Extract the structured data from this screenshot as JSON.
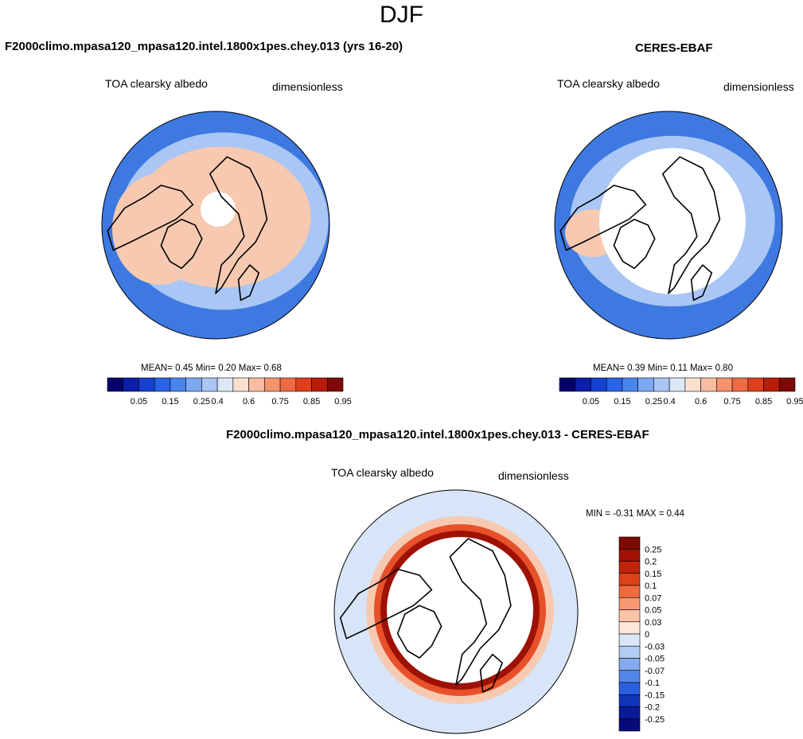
{
  "page_title": "DJF",
  "palette": {
    "ocean_blue": "#3d79e0",
    "light_blue": "#a9c6f5",
    "pale_blue": "#d8e5f8",
    "pale_red": "#f7c9b0",
    "red": "#e8502a",
    "dark_red": "#9e1205",
    "land_outline": "#000000"
  },
  "chart_data": [
    {
      "type": "heatmap",
      "panel": "model",
      "title": "F2000climo.mpasa120_mpasa120.intel.1800x1pes.chey.013 (yrs 16-20)",
      "variable": "TOA clearsky albedo",
      "units": "dimensionless",
      "projection": "polar stereographic (north)",
      "stats": {
        "mean_label": "MEAN=",
        "mean": "0.45",
        "min_label": "Min=",
        "min": "0.20",
        "max_label": "Max=",
        "max": "0.68"
      },
      "colorbar": {
        "orientation": "horizontal",
        "levels": [
          0.05,
          0.1,
          0.15,
          0.2,
          0.25,
          0.3,
          0.4,
          0.5,
          0.6,
          0.7,
          0.75,
          0.8,
          0.85,
          0.9,
          0.95
        ],
        "tick_labels": [
          "0.05",
          "0.15",
          "0.25",
          "0.4",
          "0.6",
          "0.75",
          "0.85",
          "0.95"
        ],
        "colors": [
          "#08006a",
          "#0c1fa8",
          "#1740d0",
          "#2a63e6",
          "#4a85ee",
          "#7aa8f3",
          "#a9c6f5",
          "#dbe8f8",
          "#fbe0d0",
          "#f7bda1",
          "#f4936e",
          "#ee6a45",
          "#de3f1d",
          "#b81c0c",
          "#7d0a04"
        ]
      }
    },
    {
      "type": "heatmap",
      "panel": "obs",
      "title": "CERES-EBAF",
      "variable": "TOA clearsky albedo",
      "units": "dimensionless",
      "projection": "polar stereographic (north)",
      "stats": {
        "mean_label": "MEAN=",
        "mean": "0.39",
        "min_label": "Min=",
        "min": "0.11",
        "max_label": "Max=",
        "max": "0.80"
      },
      "colorbar": {
        "orientation": "horizontal",
        "levels": [
          0.05,
          0.1,
          0.15,
          0.2,
          0.25,
          0.3,
          0.4,
          0.5,
          0.6,
          0.7,
          0.75,
          0.8,
          0.85,
          0.9,
          0.95
        ],
        "tick_labels": [
          "0.05",
          "0.15",
          "0.25",
          "0.4",
          "0.6",
          "0.75",
          "0.85",
          "0.95"
        ],
        "colors": [
          "#08006a",
          "#0c1fa8",
          "#1740d0",
          "#2a63e6",
          "#4a85ee",
          "#7aa8f3",
          "#a9c6f5",
          "#dbe8f8",
          "#fbe0d0",
          "#f7bda1",
          "#f4936e",
          "#ee6a45",
          "#de3f1d",
          "#b81c0c",
          "#7d0a04"
        ]
      }
    },
    {
      "type": "heatmap",
      "panel": "diff",
      "title": "F2000climo.mpasa120_mpasa120.intel.1800x1pes.chey.013 - CERES-EBAF",
      "variable": "TOA clearsky albedo",
      "units": "dimensionless",
      "projection": "polar stereographic (north)",
      "stats": {
        "min_label": "MIN =",
        "min": "-0.31",
        "max_label": "MAX =",
        "max": "0.44"
      },
      "colorbar": {
        "orientation": "vertical",
        "levels": [
          0.25,
          0.2,
          0.15,
          0.1,
          0.07,
          0.05,
          0.03,
          0,
          -0.03,
          -0.05,
          -0.07,
          -0.1,
          -0.15,
          -0.2,
          -0.25
        ],
        "tick_labels": [
          "0.25",
          "0.2",
          "0.15",
          "0.1",
          "0.07",
          "0.05",
          "0.03",
          "0",
          "-0.03",
          "-0.05",
          "-0.07",
          "-0.1",
          "-0.15",
          "-0.2",
          "-0.25"
        ],
        "colors": [
          "#7d0a04",
          "#a11206",
          "#c0240c",
          "#dd4218",
          "#f06a3d",
          "#f79872",
          "#fbc3a8",
          "#fde6da",
          "#d9e6f8",
          "#b3ccf4",
          "#84aaf0",
          "#5486ea",
          "#2a5fe0",
          "#1034b8",
          "#0a1a96",
          "#070b7a"
        ]
      }
    }
  ]
}
